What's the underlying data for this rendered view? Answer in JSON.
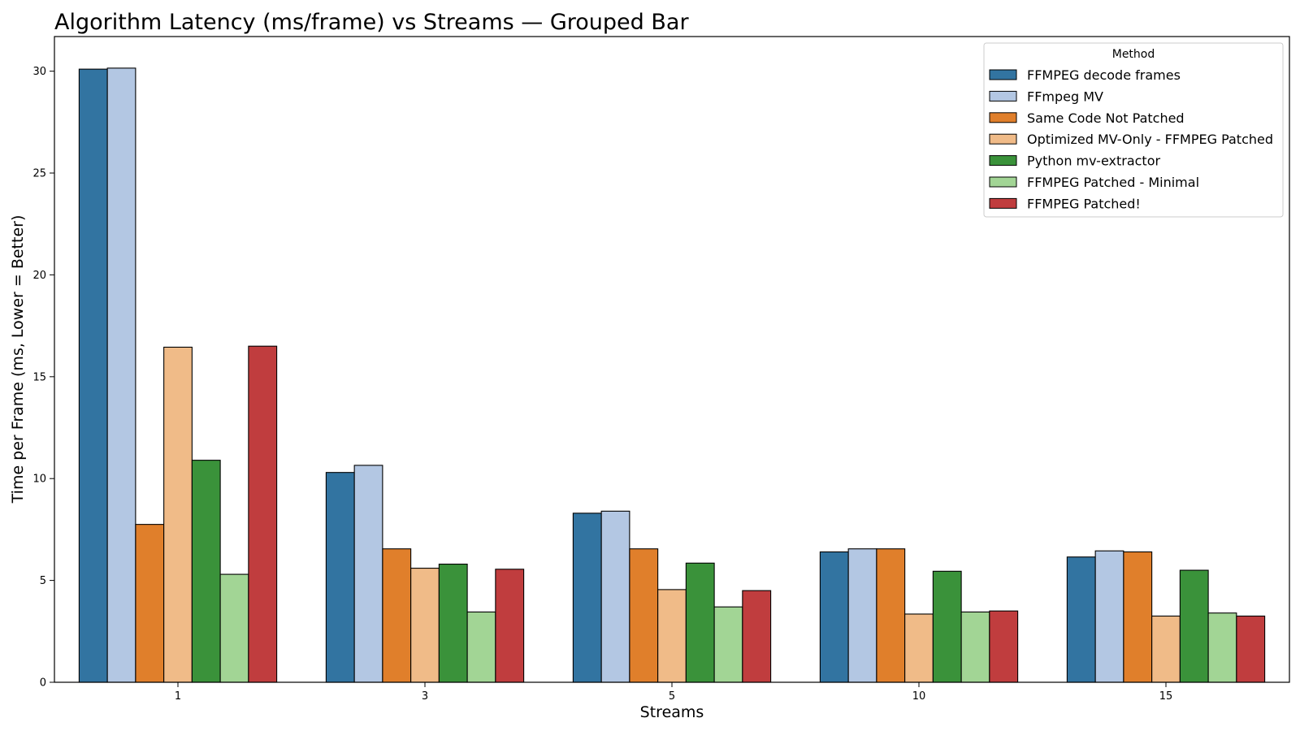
{
  "chart_data": {
    "type": "bar",
    "title": "Algorithm Latency (ms/frame) vs Streams — Grouped Bar",
    "xlabel": "Streams",
    "ylabel": "Time per Frame (ms, Lower = Better)",
    "categories": [
      "1",
      "3",
      "5",
      "10",
      "15"
    ],
    "ylim": [
      0,
      31.7
    ],
    "yticks": [
      "0",
      "5",
      "10",
      "15",
      "20",
      "25",
      "30"
    ],
    "grid": false,
    "legend": {
      "title": "Method",
      "placement": "top-right"
    },
    "series": [
      {
        "name": "FFMPEG decode frames",
        "color": "#3274a1",
        "values": [
          30.1,
          10.3,
          8.3,
          6.4,
          6.15
        ]
      },
      {
        "name": "FFmpeg MV",
        "color": "#b3c7e3",
        "values": [
          30.15,
          10.65,
          8.4,
          6.55,
          6.45
        ]
      },
      {
        "name": "Same Code Not Patched",
        "color": "#e07f2b",
        "values": [
          7.75,
          6.55,
          6.55,
          6.55,
          6.4
        ]
      },
      {
        "name": "Optimized MV-Only - FFMPEG Patched",
        "color": "#f0bb88",
        "values": [
          16.45,
          5.6,
          4.55,
          3.35,
          3.25
        ]
      },
      {
        "name": "Python mv-extractor",
        "color": "#3a923a",
        "values": [
          10.9,
          5.8,
          5.85,
          5.45,
          5.5
        ]
      },
      {
        "name": "FFMPEG Patched - Minimal",
        "color": "#a2d595",
        "values": [
          5.3,
          3.45,
          3.7,
          3.45,
          3.4
        ]
      },
      {
        "name": "FFMPEG Patched!",
        "color": "#c03d3e",
        "values": [
          16.5,
          5.55,
          4.5,
          3.5,
          3.25
        ]
      }
    ]
  }
}
